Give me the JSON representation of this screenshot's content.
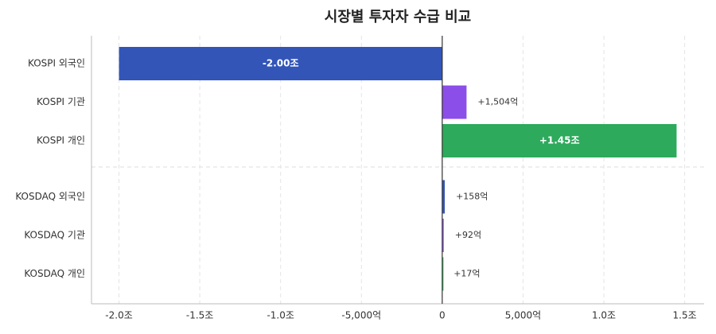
{
  "chart_data": {
    "type": "bar",
    "orientation": "horizontal",
    "title": "시장별 투자자 수급 비교",
    "categories": [
      "KOSPI 외국인",
      "KOSPI 기관",
      "KOSPI 개인",
      "KOSDAQ 외국인",
      "KOSDAQ 기관",
      "KOSDAQ 개인"
    ],
    "values": [
      -20000,
      1504,
      14500,
      158,
      92,
      17
    ],
    "value_labels": [
      "-2.00조",
      "+1,504억",
      "+1.45조",
      "+158억",
      "+92억",
      "+17억"
    ],
    "colors": [
      "#3355b8",
      "#8b4ee8",
      "#2daa5c",
      "#3355b8",
      "#8b4ee8",
      "#2daa5c"
    ],
    "xlim": [
      -21700,
      16200
    ],
    "xticks": [
      {
        "value": -20000,
        "label": "-2.0조"
      },
      {
        "value": -15000,
        "label": "-1.5조"
      },
      {
        "value": -10000,
        "label": "-1.0조"
      },
      {
        "value": -5000,
        "label": "-5,000억"
      },
      0,
      {
        "value": 5000,
        "label": "5,000억"
      },
      {
        "value": 10000,
        "label": "1.0조"
      },
      {
        "value": 15000,
        "label": "1.5조"
      }
    ],
    "grid": true
  }
}
